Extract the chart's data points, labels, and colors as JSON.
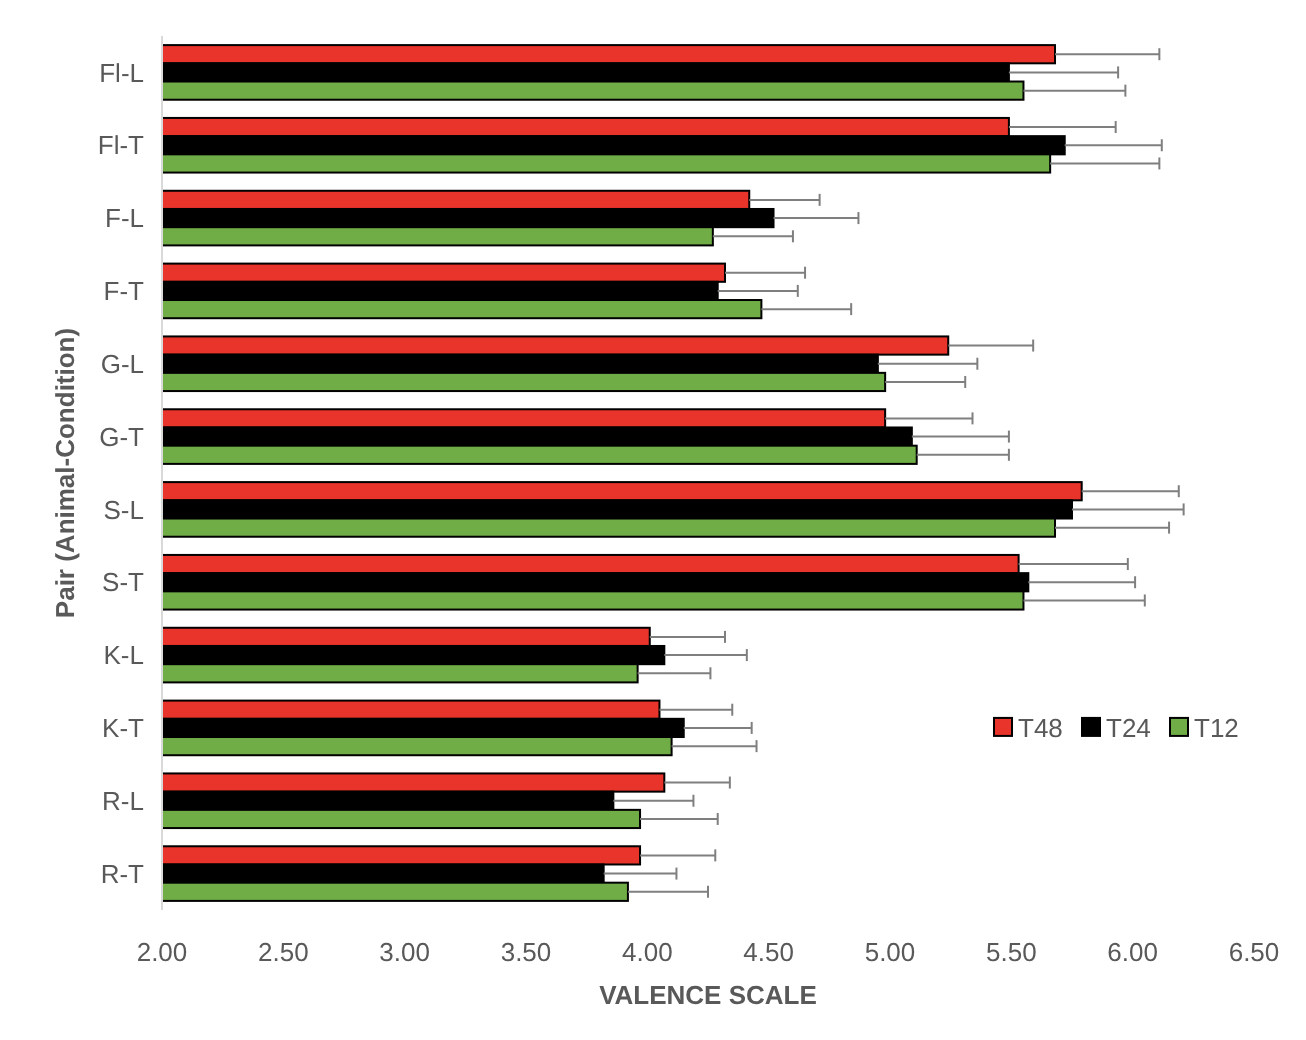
{
  "chart_data": {
    "type": "bar",
    "orientation": "horizontal",
    "xlabel": "VALENCE SCALE",
    "ylabel": "Pair (Animal-Condition)",
    "categories": [
      "Fl-L",
      "Fl-T",
      "F-L",
      "F-T",
      "G-L",
      "G-T",
      "S-L",
      "S-T",
      "K-L",
      "K-T",
      "R-L",
      "R-T"
    ],
    "series": [
      {
        "name": "T48",
        "color": "#e8342a",
        "values": [
          5.68,
          5.49,
          4.42,
          4.32,
          5.24,
          4.98,
          5.79,
          5.53,
          4.01,
          4.05,
          4.07,
          3.97
        ],
        "errors": [
          0.43,
          0.44,
          0.29,
          0.33,
          0.35,
          0.36,
          0.4,
          0.45,
          0.31,
          0.3,
          0.27,
          0.31
        ]
      },
      {
        "name": "T24",
        "color": "#000000",
        "values": [
          5.49,
          5.72,
          4.52,
          4.29,
          4.95,
          5.09,
          5.75,
          5.57,
          4.07,
          4.15,
          3.86,
          3.82
        ],
        "errors": [
          0.45,
          0.4,
          0.35,
          0.33,
          0.41,
          0.4,
          0.46,
          0.44,
          0.34,
          0.28,
          0.33,
          0.3
        ]
      },
      {
        "name": "T12",
        "color": "#70ad47",
        "values": [
          5.55,
          5.66,
          4.27,
          4.47,
          4.98,
          5.11,
          5.68,
          5.55,
          3.96,
          4.1,
          3.97,
          3.92
        ],
        "errors": [
          0.42,
          0.45,
          0.33,
          0.37,
          0.33,
          0.38,
          0.47,
          0.5,
          0.3,
          0.35,
          0.32,
          0.33
        ]
      }
    ],
    "xlim": [
      2,
      6.5
    ],
    "xticks": [
      {
        "value": 2,
        "label": "2.00"
      },
      {
        "value": 2.5,
        "label": "2.50"
      },
      {
        "value": 3,
        "label": "3.00"
      },
      {
        "value": 3.5,
        "label": "3.50"
      },
      {
        "value": 4,
        "label": "4.00"
      },
      {
        "value": 4.5,
        "label": "4.50"
      },
      {
        "value": 5,
        "label": "5.00"
      },
      {
        "value": 5.5,
        "label": "5.50"
      },
      {
        "value": 6,
        "label": "6.00"
      },
      {
        "value": 6.5,
        "label": "6.50"
      }
    ],
    "grid": false,
    "legend": "right"
  }
}
